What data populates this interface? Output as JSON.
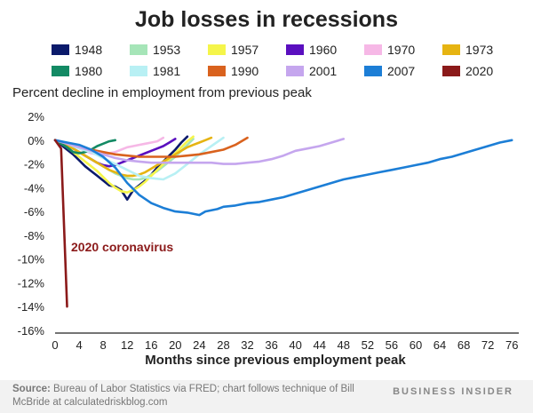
{
  "header": {
    "title": "Job losses in recessions"
  },
  "axis_text": {
    "ylabel": "Percent decline in employment from previous peak",
    "xlabel": "Months since previous employment peak"
  },
  "footer": {
    "source_label": "Source:",
    "source_text": "Bureau of Labor Statistics via FRED; chart follows technique of Bill McBride at calculatedriskblog.com",
    "brand": "BUSINESS INSIDER"
  },
  "annotation": {
    "text": "2020 coronavirus",
    "color": "#8b1a1a"
  },
  "chart_data": {
    "type": "line",
    "title": "Job losses in recessions",
    "xlabel": "Months since previous employment peak",
    "ylabel": "Percent decline in employment from previous peak",
    "xlim": [
      0,
      77
    ],
    "ylim": [
      -16,
      2
    ],
    "x_ticks": [
      0,
      4,
      8,
      12,
      16,
      20,
      24,
      28,
      32,
      36,
      40,
      44,
      48,
      52,
      56,
      60,
      64,
      68,
      72,
      76
    ],
    "x_tick_labels": [
      "0",
      "4",
      "8",
      "12",
      "16",
      "20",
      "24",
      "28",
      "32",
      "36",
      "40",
      "44",
      "48",
      "52",
      "56",
      "60",
      "64",
      "68",
      "72",
      "76"
    ],
    "y_ticks": [
      2,
      0,
      -2,
      -4,
      -6,
      -8,
      -10,
      -12,
      -14,
      -16
    ],
    "y_tick_labels": [
      "2%",
      "0%",
      "-2%",
      "-4%",
      "-6%",
      "-8%",
      "-10%",
      "-12%",
      "-14%",
      "-16%"
    ],
    "grid": false,
    "legend_position": "top",
    "series": [
      {
        "name": "1948",
        "color": "#0b1a6b",
        "x": [
          0,
          1,
          2,
          3,
          4,
          5,
          6,
          7,
          8,
          9,
          10,
          11,
          12,
          13,
          14,
          15,
          16,
          17,
          18,
          19,
          20,
          21,
          22
        ],
        "y": [
          0,
          -0.4,
          -0.8,
          -1.2,
          -1.7,
          -2.2,
          -2.6,
          -3.0,
          -3.4,
          -3.8,
          -3.9,
          -4.2,
          -5.0,
          -4.2,
          -3.8,
          -3.4,
          -2.9,
          -2.3,
          -1.8,
          -1.3,
          -0.8,
          -0.2,
          0.3
        ]
      },
      {
        "name": "1953",
        "color": "#a6e5b8",
        "x": [
          0,
          1,
          2,
          3,
          4,
          5,
          6,
          7,
          8,
          9,
          10,
          11,
          12,
          13,
          14,
          15,
          16,
          17,
          18,
          19,
          20,
          21,
          22,
          23
        ],
        "y": [
          0,
          -0.2,
          -0.4,
          -0.7,
          -1.0,
          -1.3,
          -1.6,
          -1.9,
          -2.2,
          -2.5,
          -2.8,
          -3.0,
          -3.2,
          -3.3,
          -3.3,
          -3.2,
          -2.9,
          -2.6,
          -2.2,
          -1.8,
          -1.4,
          -0.9,
          -0.4,
          0.1
        ]
      },
      {
        "name": "1957",
        "color": "#f5f54a",
        "x": [
          0,
          1,
          2,
          3,
          4,
          5,
          6,
          7,
          8,
          9,
          10,
          11,
          12,
          13,
          14,
          15,
          16,
          17,
          18,
          19,
          20,
          21,
          22,
          23
        ],
        "y": [
          0,
          -0.3,
          -0.6,
          -1.0,
          -1.4,
          -1.8,
          -2.2,
          -2.6,
          -3.1,
          -3.6,
          -4.0,
          -4.3,
          -4.4,
          -4.2,
          -3.9,
          -3.5,
          -3.0,
          -2.5,
          -2.0,
          -1.6,
          -1.1,
          -0.6,
          -0.1,
          0.3
        ]
      },
      {
        "name": "1960",
        "color": "#5a0fbf",
        "x": [
          0,
          1,
          2,
          3,
          4,
          5,
          6,
          7,
          8,
          9,
          10,
          11,
          12,
          13,
          14,
          15,
          16,
          17,
          18,
          19,
          20
        ],
        "y": [
          0,
          -0.2,
          -0.4,
          -0.7,
          -1.0,
          -1.3,
          -1.6,
          -1.9,
          -2.1,
          -2.2,
          -2.1,
          -1.9,
          -1.7,
          -1.5,
          -1.3,
          -1.1,
          -0.9,
          -0.7,
          -0.5,
          -0.2,
          0.1
        ]
      },
      {
        "name": "1970",
        "color": "#f6b8e6",
        "x": [
          0,
          1,
          2,
          3,
          4,
          5,
          6,
          7,
          8,
          9,
          10,
          11,
          12,
          13,
          14,
          15,
          16,
          17,
          18
        ],
        "y": [
          0,
          -0.1,
          -0.3,
          -0.5,
          -0.7,
          -0.9,
          -1.1,
          -1.2,
          -1.2,
          -1.1,
          -1.0,
          -0.8,
          -0.6,
          -0.5,
          -0.4,
          -0.3,
          -0.2,
          -0.1,
          0.2
        ]
      },
      {
        "name": "1973",
        "color": "#e6b412",
        "x": [
          0,
          1,
          2,
          3,
          4,
          5,
          6,
          7,
          8,
          9,
          10,
          11,
          12,
          13,
          14,
          15,
          16,
          17,
          18,
          19,
          20,
          21,
          22,
          23,
          24,
          25,
          26
        ],
        "y": [
          0,
          -0.2,
          -0.4,
          -0.7,
          -1.0,
          -1.3,
          -1.6,
          -1.9,
          -2.2,
          -2.5,
          -2.7,
          -2.9,
          -3.0,
          -3.0,
          -2.9,
          -2.7,
          -2.4,
          -2.1,
          -1.8,
          -1.5,
          -1.2,
          -0.9,
          -0.6,
          -0.4,
          -0.2,
          0.0,
          0.2
        ]
      },
      {
        "name": "1980",
        "color": "#138a64",
        "x": [
          0,
          1,
          2,
          3,
          4,
          5,
          6,
          7,
          8,
          9,
          10
        ],
        "y": [
          0,
          -0.3,
          -0.6,
          -1.0,
          -1.1,
          -1.0,
          -0.8,
          -0.5,
          -0.3,
          -0.1,
          0.0
        ]
      },
      {
        "name": "1981",
        "color": "#b8f0f4",
        "x": [
          0,
          2,
          4,
          6,
          8,
          10,
          12,
          14,
          16,
          18,
          20,
          22,
          24,
          26,
          28
        ],
        "y": [
          0,
          -0.3,
          -0.7,
          -1.0,
          -1.5,
          -2.0,
          -2.5,
          -3.0,
          -3.2,
          -3.3,
          -2.8,
          -2.0,
          -1.2,
          -0.5,
          0.2
        ]
      },
      {
        "name": "1990",
        "color": "#d9621e",
        "x": [
          0,
          2,
          4,
          6,
          8,
          10,
          12,
          14,
          16,
          18,
          20,
          22,
          24,
          26,
          28,
          30,
          32
        ],
        "y": [
          0,
          -0.3,
          -0.5,
          -0.8,
          -1.0,
          -1.2,
          -1.3,
          -1.4,
          -1.4,
          -1.4,
          -1.4,
          -1.3,
          -1.2,
          -1.0,
          -0.8,
          -0.4,
          0.2
        ]
      },
      {
        "name": "2001",
        "color": "#c5a6ee",
        "x": [
          0,
          2,
          4,
          6,
          8,
          10,
          12,
          14,
          16,
          18,
          20,
          22,
          24,
          26,
          28,
          30,
          32,
          34,
          36,
          38,
          40,
          42,
          44,
          46,
          48
        ],
        "y": [
          0,
          -0.3,
          -0.6,
          -0.9,
          -1.2,
          -1.5,
          -1.7,
          -1.8,
          -1.9,
          -1.9,
          -1.9,
          -1.9,
          -1.9,
          -1.9,
          -2.0,
          -2.0,
          -1.9,
          -1.8,
          -1.6,
          -1.3,
          -0.9,
          -0.7,
          -0.5,
          -0.2,
          0.1
        ]
      },
      {
        "name": "2007",
        "color": "#1c7ed6",
        "x": [
          0,
          2,
          4,
          6,
          8,
          10,
          12,
          14,
          16,
          18,
          20,
          22,
          24,
          25,
          27,
          28,
          30,
          32,
          34,
          36,
          38,
          40,
          42,
          44,
          46,
          48,
          50,
          52,
          54,
          56,
          58,
          60,
          62,
          64,
          66,
          68,
          70,
          72,
          74,
          76
        ],
        "y": [
          0,
          -0.2,
          -0.4,
          -0.8,
          -1.4,
          -2.3,
          -3.6,
          -4.6,
          -5.3,
          -5.7,
          -6.0,
          -6.1,
          -6.3,
          -6.0,
          -5.8,
          -5.6,
          -5.5,
          -5.3,
          -5.2,
          -5.0,
          -4.8,
          -4.5,
          -4.2,
          -3.9,
          -3.6,
          -3.3,
          -3.1,
          -2.9,
          -2.7,
          -2.5,
          -2.3,
          -2.1,
          -1.9,
          -1.6,
          -1.4,
          -1.1,
          -0.8,
          -0.5,
          -0.2,
          0.0
        ]
      },
      {
        "name": "2020",
        "color": "#8b1a1a",
        "x": [
          0,
          1,
          2
        ],
        "y": [
          0,
          -0.7,
          -14.0
        ]
      }
    ]
  }
}
